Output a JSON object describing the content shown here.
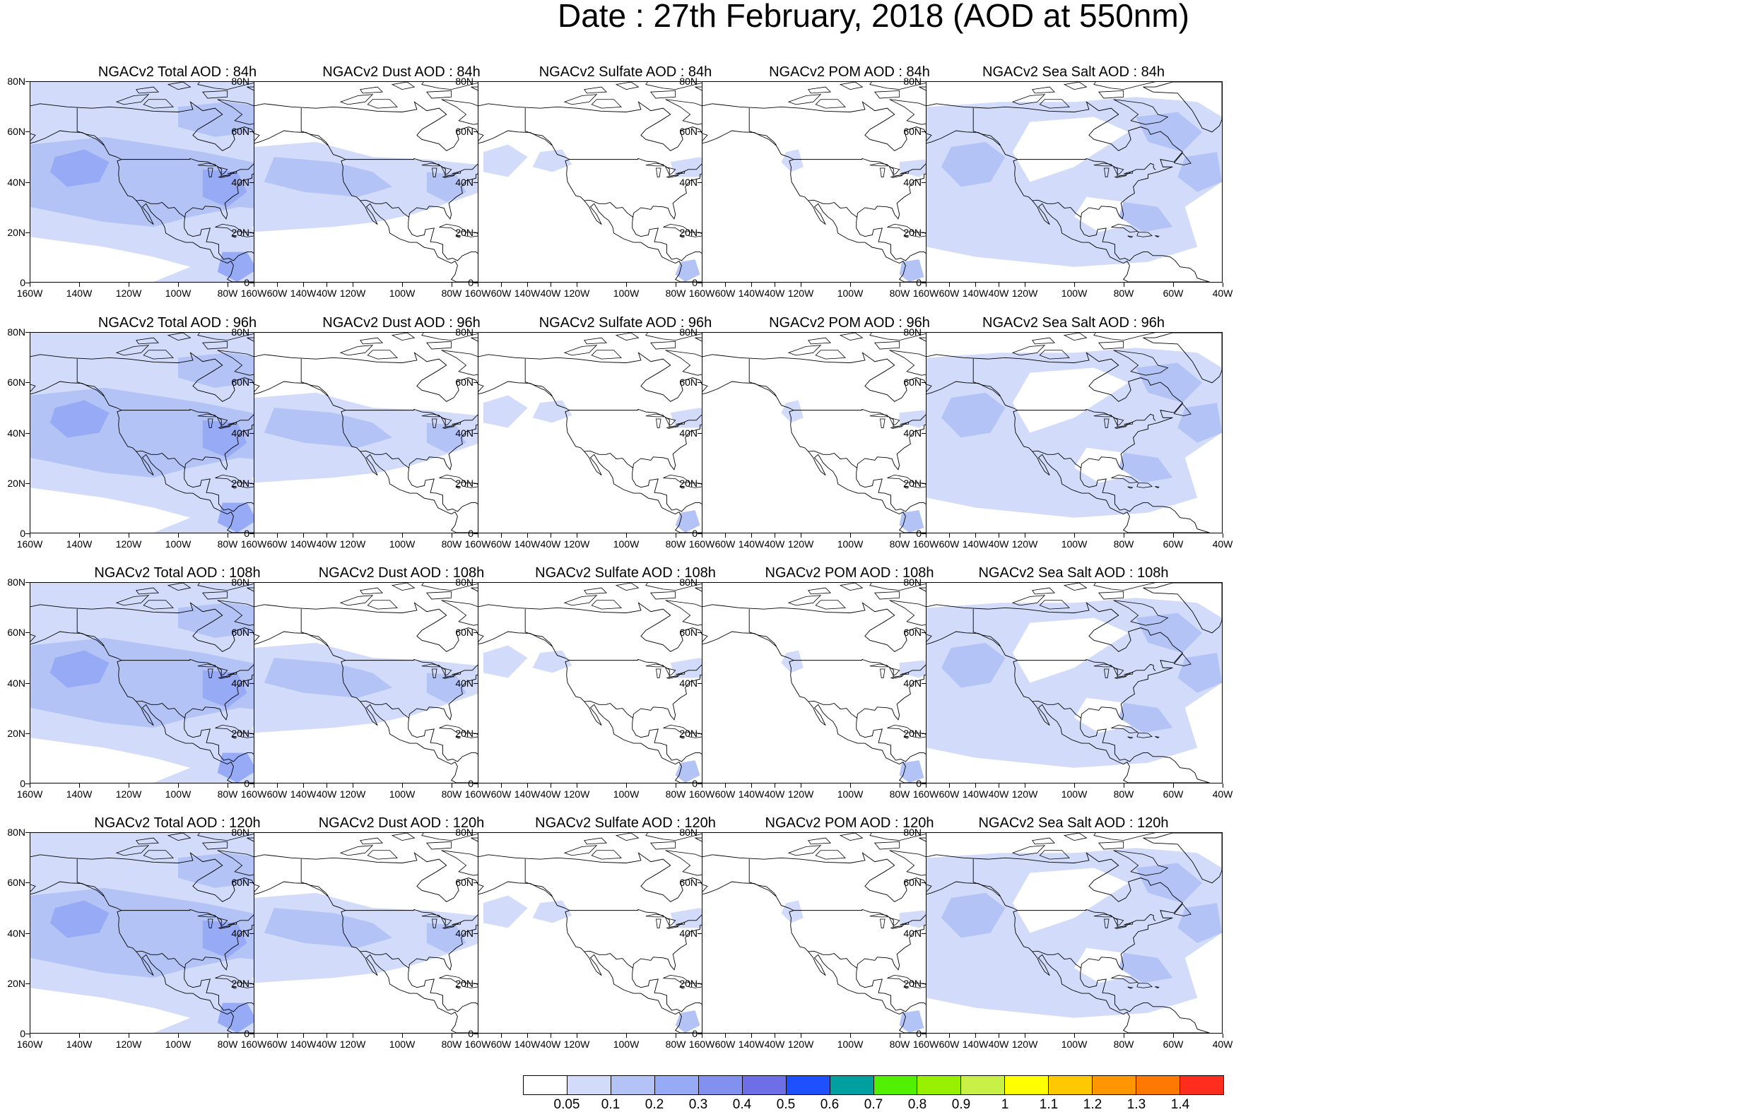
{
  "title": "Date : 27th February, 2018 (AOD at 550nm)",
  "axes": {
    "lat_labels": [
      "80N",
      "60N",
      "40N",
      "20N",
      "0"
    ],
    "lon_labels": [
      "160W",
      "140W",
      "120W",
      "100W",
      "80W",
      "60W",
      "40W"
    ],
    "lat_range": [
      0,
      80
    ],
    "lon_range": [
      -160,
      -40
    ]
  },
  "panels": [
    {
      "title": "NGACv2 Total AOD : 84h",
      "variable": "total",
      "forecast_hour": 84
    },
    {
      "title": "NGACv2 Dust AOD : 84h",
      "variable": "dust",
      "forecast_hour": 84
    },
    {
      "title": "NGACv2 Sulfate AOD : 84h",
      "variable": "sulfate",
      "forecast_hour": 84
    },
    {
      "title": "NGACv2 POM AOD : 84h",
      "variable": "pom",
      "forecast_hour": 84
    },
    {
      "title": "NGACv2 Sea Salt AOD : 84h",
      "variable": "seasalt",
      "forecast_hour": 84
    },
    {
      "title": "NGACv2 Total AOD : 96h",
      "variable": "total",
      "forecast_hour": 96
    },
    {
      "title": "NGACv2 Dust AOD : 96h",
      "variable": "dust",
      "forecast_hour": 96
    },
    {
      "title": "NGACv2 Sulfate AOD : 96h",
      "variable": "sulfate",
      "forecast_hour": 96
    },
    {
      "title": "NGACv2 POM AOD : 96h",
      "variable": "pom",
      "forecast_hour": 96
    },
    {
      "title": "NGACv2 Sea Salt AOD : 96h",
      "variable": "seasalt",
      "forecast_hour": 96
    },
    {
      "title": "NGACv2 Total AOD : 108h",
      "variable": "total",
      "forecast_hour": 108
    },
    {
      "title": "NGACv2 Dust AOD : 108h",
      "variable": "dust",
      "forecast_hour": 108
    },
    {
      "title": "NGACv2 Sulfate AOD : 108h",
      "variable": "sulfate",
      "forecast_hour": 108
    },
    {
      "title": "NGACv2 POM AOD : 108h",
      "variable": "pom",
      "forecast_hour": 108
    },
    {
      "title": "NGACv2 Sea Salt AOD : 108h",
      "variable": "seasalt",
      "forecast_hour": 108
    },
    {
      "title": "NGACv2 Total AOD : 120h",
      "variable": "total",
      "forecast_hour": 120
    },
    {
      "title": "NGACv2 Dust AOD : 120h",
      "variable": "dust",
      "forecast_hour": 120
    },
    {
      "title": "NGACv2 Sulfate AOD : 120h",
      "variable": "sulfate",
      "forecast_hour": 120
    },
    {
      "title": "NGACv2 POM AOD : 120h",
      "variable": "pom",
      "forecast_hour": 120
    },
    {
      "title": "NGACv2 Sea Salt  AOD : 120h",
      "variable": "seasalt",
      "forecast_hour": 120
    }
  ],
  "legend": {
    "levels": [
      "0.05",
      "0.1",
      "0.2",
      "0.3",
      "0.4",
      "0.5",
      "0.6",
      "0.7",
      "0.8",
      "0.9",
      "1",
      "1.1",
      "1.2",
      "1.3",
      "1.4"
    ],
    "colors": [
      "#ffffff",
      "#d2dcfa",
      "#b4c3f5",
      "#96aaf5",
      "#8291f0",
      "#6e6ee6",
      "#1e50ff",
      "#00a0a0",
      "#50f000",
      "#96f000",
      "#c8f046",
      "#ffff00",
      "#ffc800",
      "#ff9600",
      "#ff7800",
      "#ff2d1e"
    ]
  }
}
